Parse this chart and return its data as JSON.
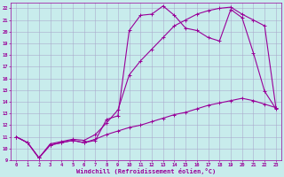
{
  "xlabel": "Windchill (Refroidissement éolien,°C)",
  "background_color": "#c8ecec",
  "line_color": "#990099",
  "grid_color": "#aaaacc",
  "xlim": [
    -0.5,
    23.5
  ],
  "ylim": [
    9,
    22.5
  ],
  "xticks": [
    0,
    1,
    2,
    3,
    4,
    5,
    6,
    7,
    8,
    9,
    10,
    11,
    12,
    13,
    14,
    15,
    16,
    17,
    18,
    19,
    20,
    21,
    22,
    23
  ],
  "yticks": [
    9,
    10,
    11,
    12,
    13,
    14,
    15,
    16,
    17,
    18,
    19,
    20,
    21,
    22
  ],
  "series1_x": [
    0,
    1,
    2,
    3,
    4,
    5,
    6,
    7,
    8,
    9,
    10,
    11,
    12,
    13,
    14,
    15,
    16,
    17,
    18,
    19,
    20,
    21,
    22,
    23
  ],
  "series1_y": [
    11,
    10.5,
    9.2,
    10.3,
    10.5,
    10.7,
    10.5,
    10.7,
    12.5,
    12.8,
    20.1,
    21.4,
    21.5,
    22.2,
    21.4,
    20.3,
    20.1,
    19.5,
    19.2,
    21.9,
    21.2,
    18.2,
    14.9,
    13.4
  ],
  "series2_x": [
    0,
    1,
    2,
    3,
    4,
    5,
    6,
    7,
    8,
    9,
    10,
    11,
    12,
    13,
    14,
    15,
    16,
    17,
    18,
    19,
    20,
    21,
    22,
    23
  ],
  "series2_y": [
    11,
    10.5,
    9.2,
    10.4,
    10.6,
    10.8,
    10.7,
    11.2,
    12.2,
    13.3,
    16.3,
    17.5,
    18.5,
    19.5,
    20.5,
    21.0,
    21.5,
    21.8,
    22.0,
    22.1,
    21.5,
    21.0,
    20.5,
    13.5
  ],
  "series3_x": [
    0,
    1,
    2,
    3,
    4,
    5,
    6,
    7,
    8,
    9,
    10,
    11,
    12,
    13,
    14,
    15,
    16,
    17,
    18,
    19,
    20,
    21,
    22,
    23
  ],
  "series3_y": [
    11,
    10.5,
    9.2,
    10.3,
    10.5,
    10.7,
    10.5,
    10.8,
    11.2,
    11.5,
    11.8,
    12.0,
    12.3,
    12.6,
    12.9,
    13.1,
    13.4,
    13.7,
    13.9,
    14.1,
    14.3,
    14.1,
    13.8,
    13.5
  ]
}
